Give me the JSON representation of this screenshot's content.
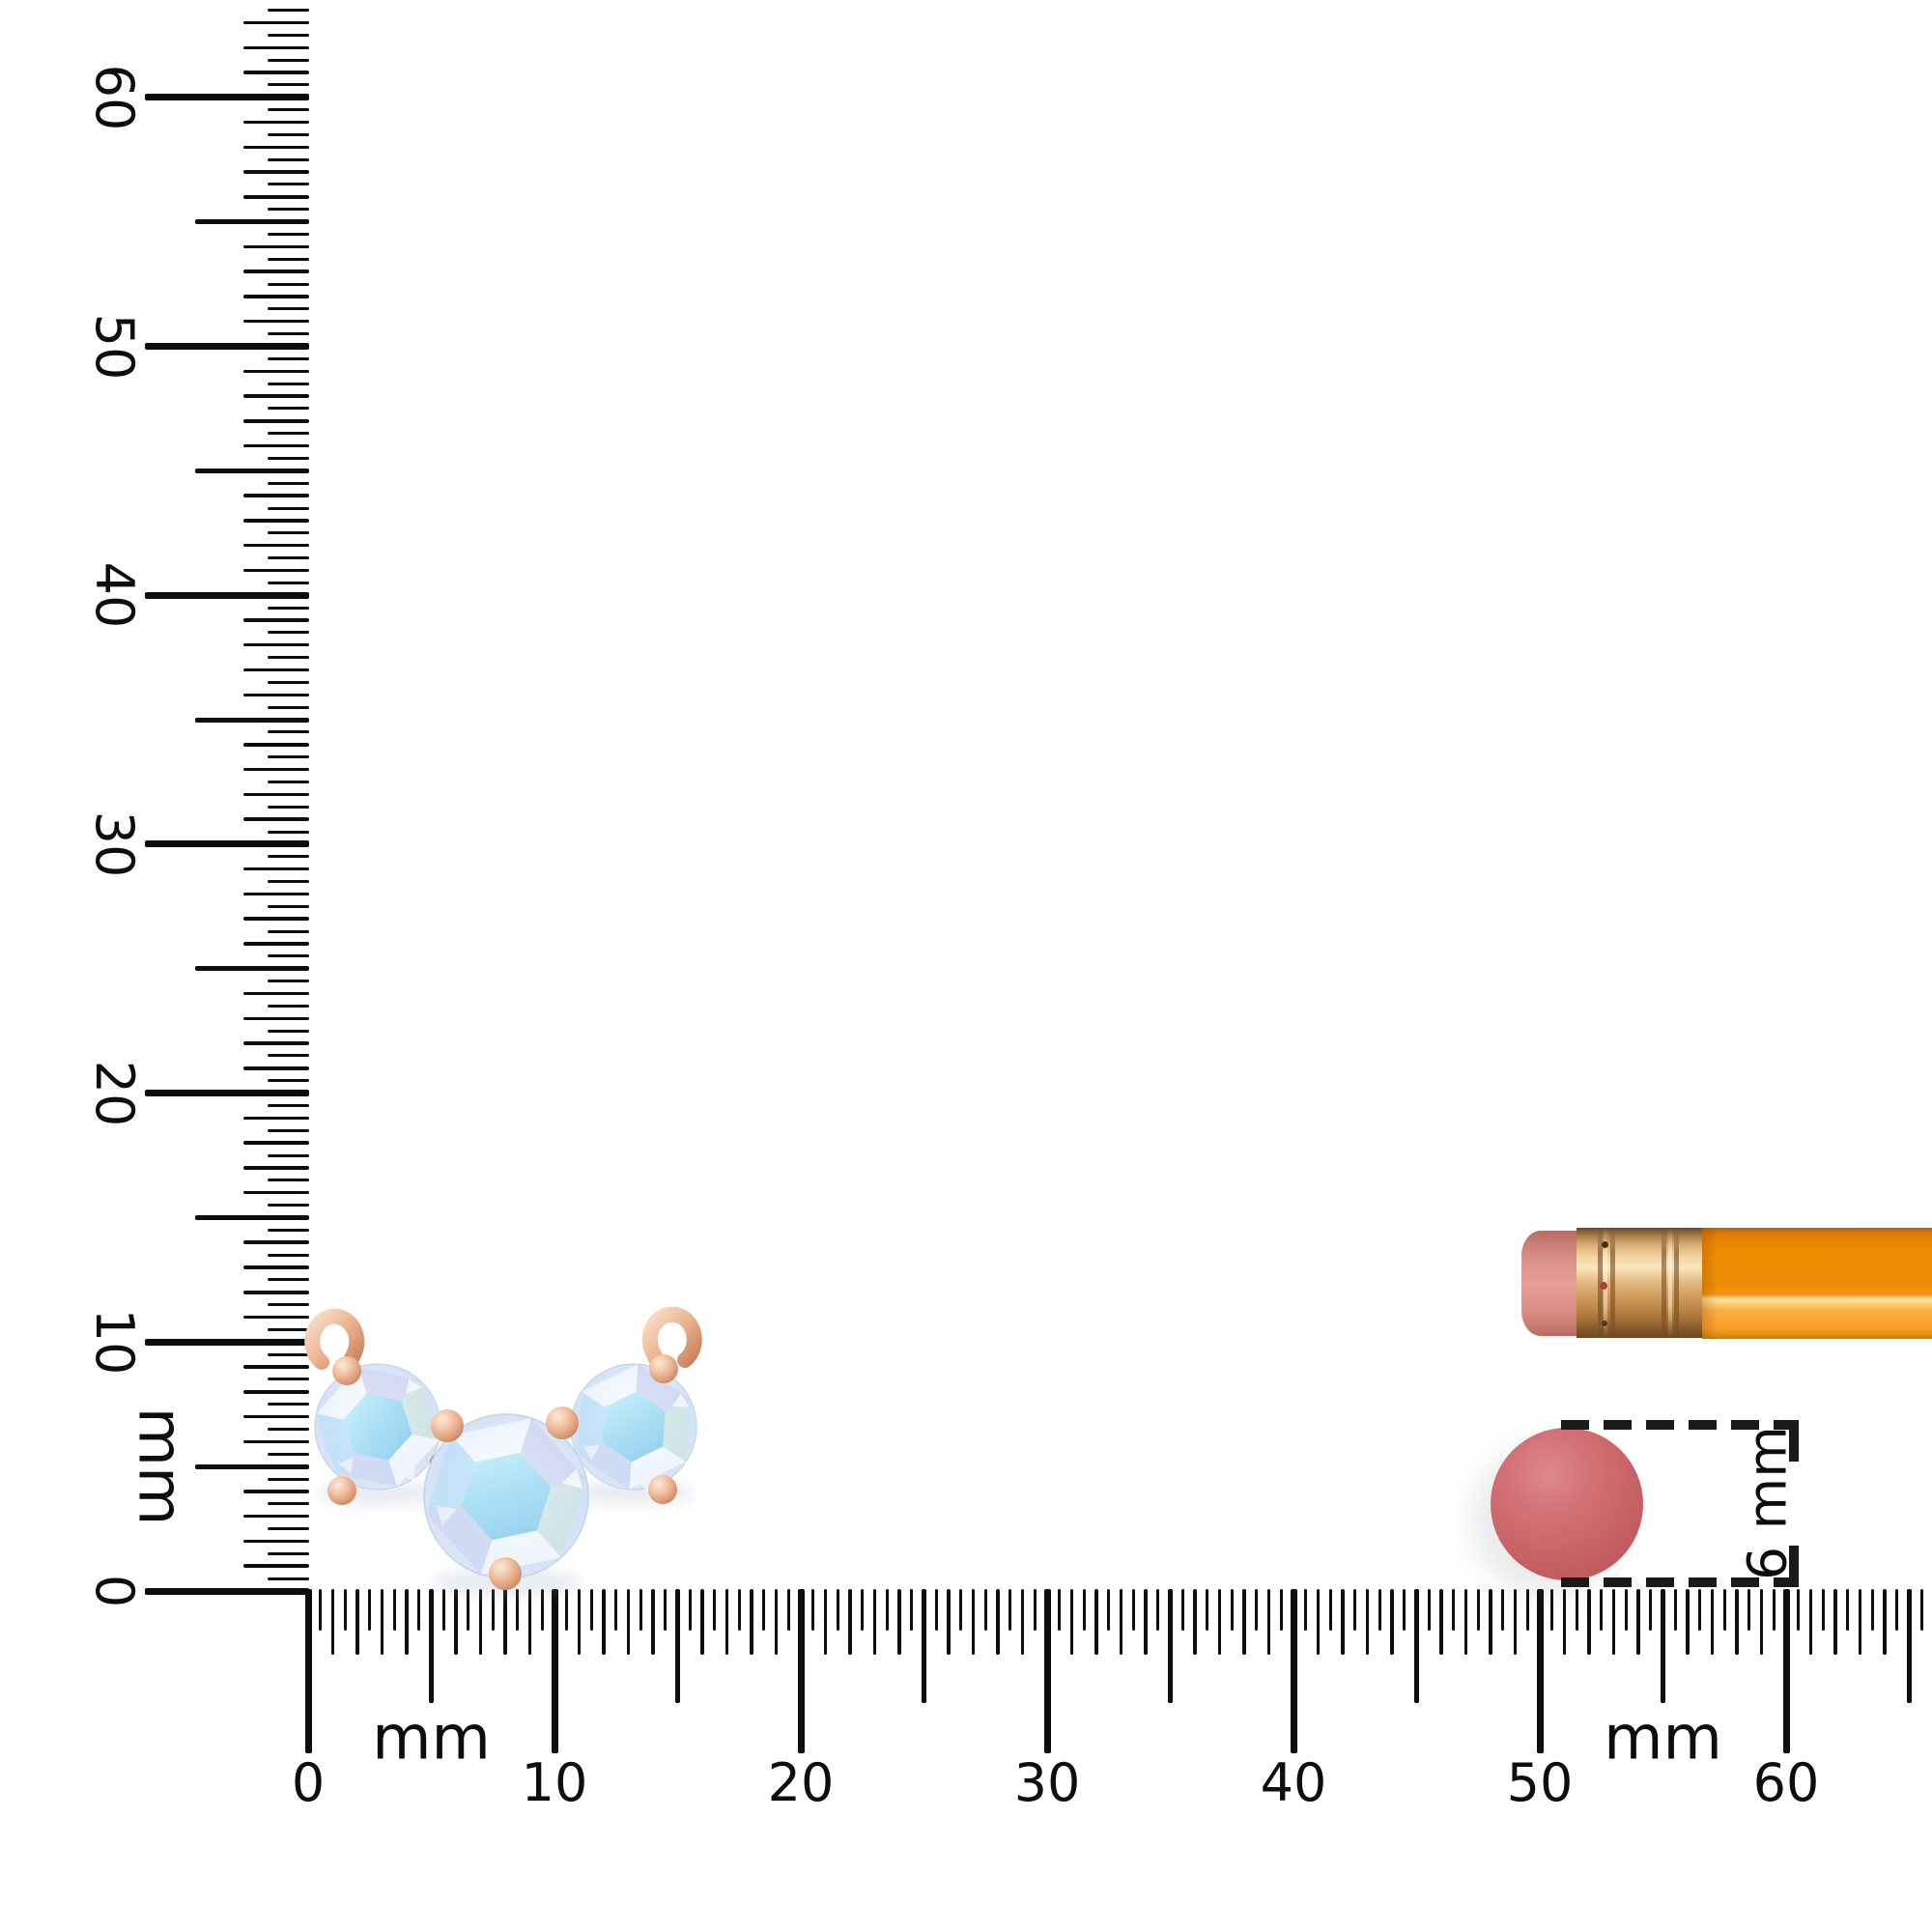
{
  "page": {
    "background": "#ffffff",
    "tick_color": "#0d0d0d",
    "label_color": "#0d0d0d"
  },
  "rulers": {
    "unit": "mm",
    "range_mm": [
      0,
      60
    ],
    "number_step_mm": 10,
    "numbers": [
      "0",
      "10",
      "20",
      "30",
      "40",
      "50",
      "60"
    ],
    "vertical": {
      "unit_labels": [
        "mm"
      ]
    },
    "horizontal": {
      "unit_labels": [
        "mm",
        "mm"
      ]
    }
  },
  "annotation": {
    "label": "6 mm",
    "dash_color": "#1a1a1a"
  },
  "objects": {
    "pendant": {
      "stones": 3,
      "stone_fill": "#dcebf8",
      "stone_table_fill": "#a6dcf4",
      "stone_lavender": "#d0d4f1",
      "metal": "#e3a587",
      "metal_light": "#f8dcc9",
      "metal_dark": "#cd8765"
    },
    "disc": {
      "fill": "#c86165"
    },
    "pencil": {
      "eraser": "#e0958a",
      "ferrule": "#e7c089",
      "body": "#f79204",
      "highlight": "#ffe2a2"
    }
  }
}
